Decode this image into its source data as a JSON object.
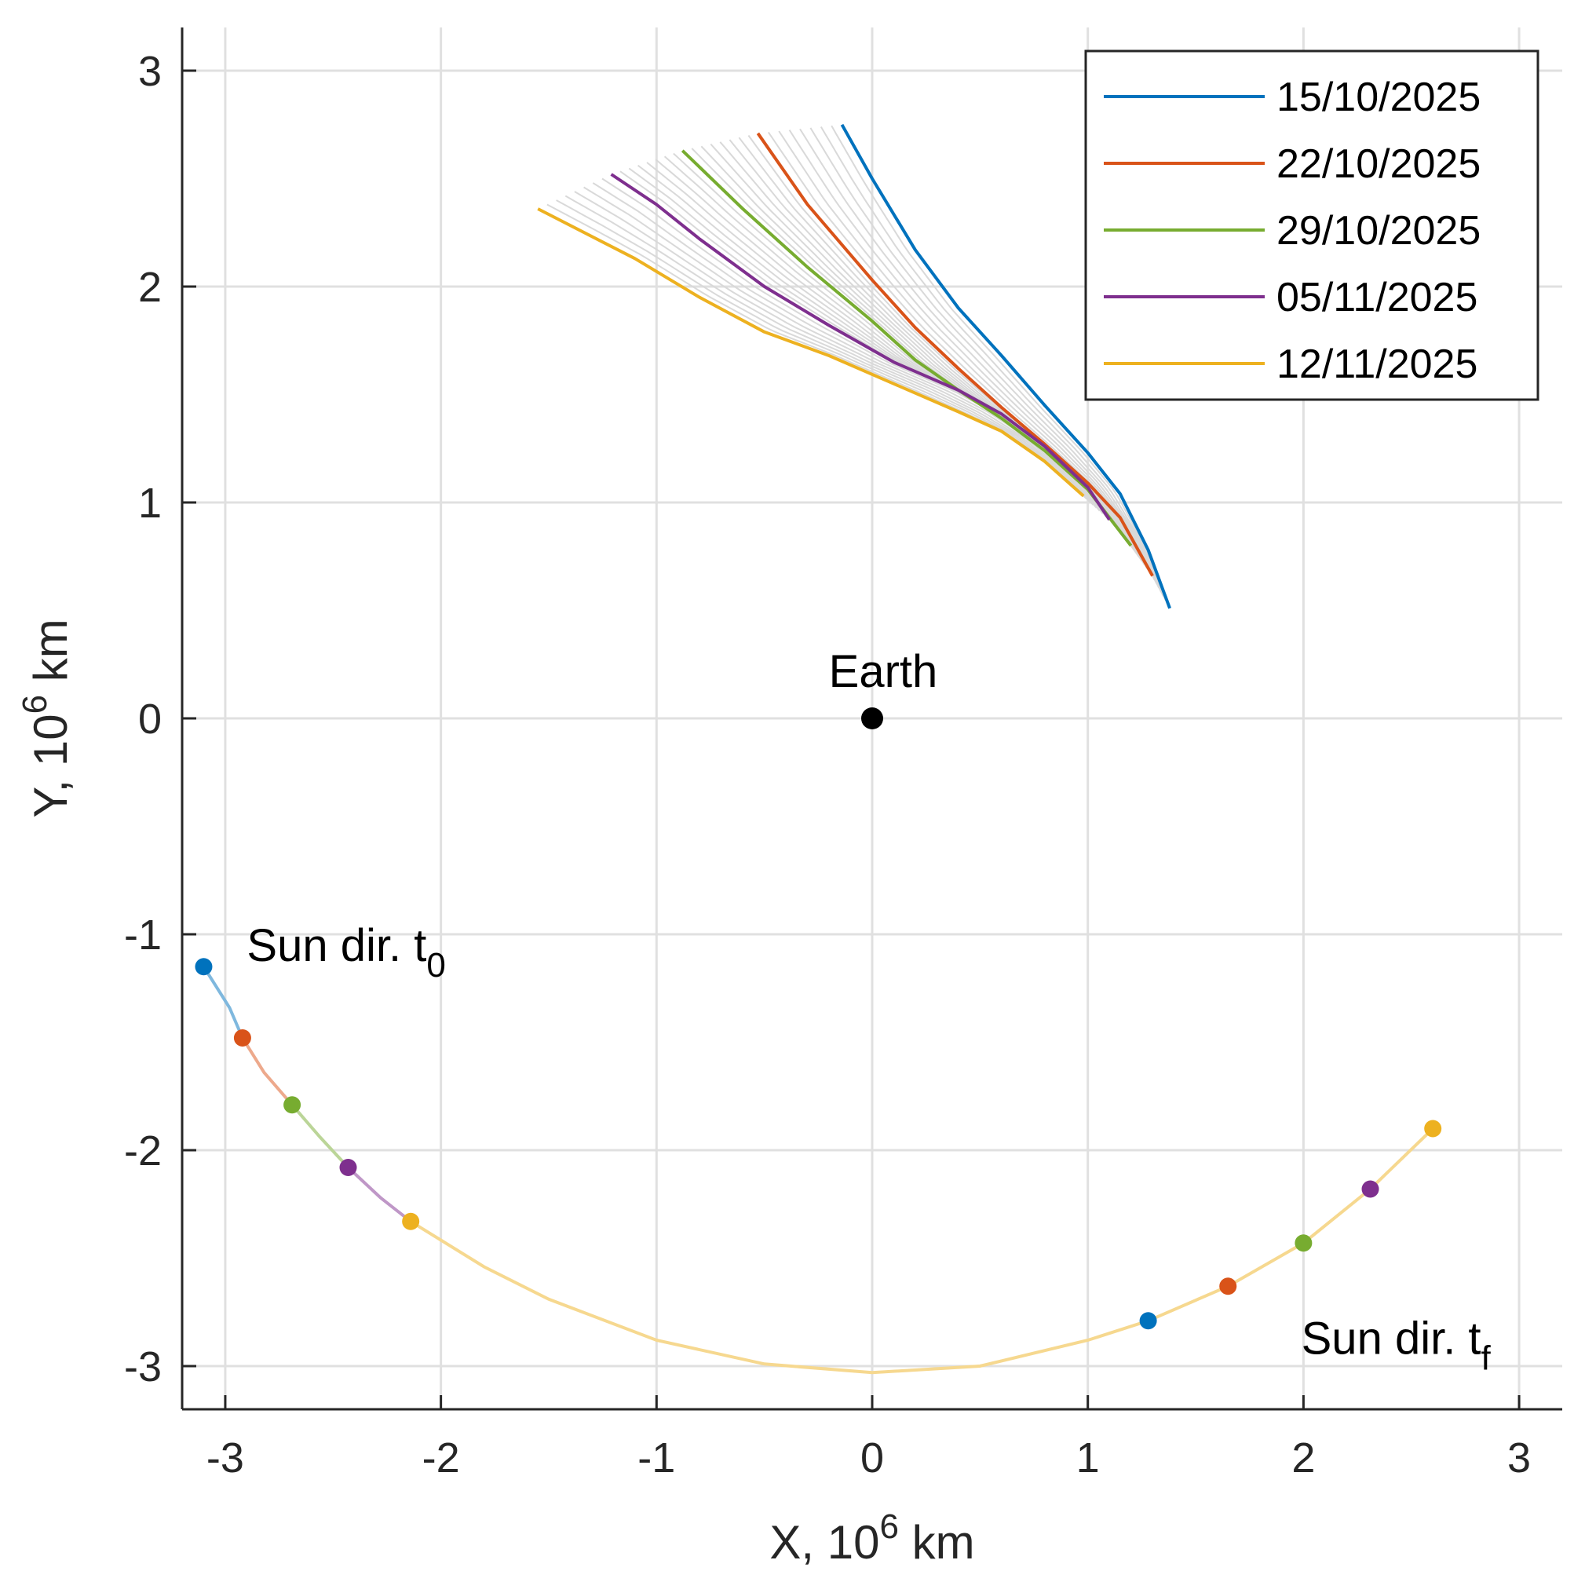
{
  "chart_data": {
    "type": "line",
    "title": "",
    "xlabel": {
      "text": "X, 10",
      "sup": "6",
      "unit": " km"
    },
    "ylabel": {
      "text": "Y, 10",
      "sup": "6",
      "unit": " km"
    },
    "xlim": [
      -3.2,
      3.2
    ],
    "ylim": [
      -3.2,
      3.2
    ],
    "xticks": [
      -3,
      -2,
      -1,
      0,
      1,
      2,
      3
    ],
    "yticks": [
      -3,
      -2,
      -1,
      0,
      1,
      2,
      3
    ],
    "grid": true,
    "legend_position": "top-right",
    "series": [
      {
        "name": "15/10/2025",
        "color": "#0072BD",
        "points": [
          [
            -0.14,
            2.75
          ],
          [
            0.0,
            2.5
          ],
          [
            0.2,
            2.17
          ],
          [
            0.4,
            1.9
          ],
          [
            0.6,
            1.68
          ],
          [
            0.8,
            1.45
          ],
          [
            1.0,
            1.23
          ],
          [
            1.15,
            1.04
          ],
          [
            1.28,
            0.78
          ],
          [
            1.38,
            0.51
          ]
        ]
      },
      {
        "name": "22/10/2025",
        "color": "#D95319",
        "points": [
          [
            -0.53,
            2.71
          ],
          [
            -0.3,
            2.38
          ],
          [
            0.0,
            2.03
          ],
          [
            0.2,
            1.81
          ],
          [
            0.4,
            1.62
          ],
          [
            0.6,
            1.44
          ],
          [
            0.8,
            1.27
          ],
          [
            1.0,
            1.09
          ],
          [
            1.15,
            0.93
          ],
          [
            1.3,
            0.66
          ]
        ]
      },
      {
        "name": "29/10/2025",
        "color": "#77AC30",
        "points": [
          [
            -0.88,
            2.63
          ],
          [
            -0.6,
            2.36
          ],
          [
            -0.3,
            2.09
          ],
          [
            0.0,
            1.84
          ],
          [
            0.2,
            1.66
          ],
          [
            0.4,
            1.52
          ],
          [
            0.6,
            1.39
          ],
          [
            0.8,
            1.24
          ],
          [
            1.0,
            1.06
          ],
          [
            1.2,
            0.8
          ]
        ]
      },
      {
        "name": "05/11/2025",
        "color": "#7E2F8E",
        "points": [
          [
            -1.21,
            2.52
          ],
          [
            -1.0,
            2.38
          ],
          [
            -0.8,
            2.22
          ],
          [
            -0.5,
            2.0
          ],
          [
            -0.2,
            1.82
          ],
          [
            0.1,
            1.65
          ],
          [
            0.4,
            1.52
          ],
          [
            0.6,
            1.41
          ],
          [
            0.8,
            1.26
          ],
          [
            1.0,
            1.07
          ],
          [
            1.1,
            0.92
          ]
        ]
      },
      {
        "name": "12/11/2025",
        "color": "#EDB120",
        "points": [
          [
            -1.55,
            2.36
          ],
          [
            -1.1,
            2.13
          ],
          [
            -0.8,
            1.95
          ],
          [
            -0.5,
            1.79
          ],
          [
            -0.2,
            1.68
          ],
          [
            0.1,
            1.55
          ],
          [
            0.4,
            1.42
          ],
          [
            0.6,
            1.33
          ],
          [
            0.8,
            1.19
          ],
          [
            0.98,
            1.03
          ]
        ]
      }
    ],
    "earth": {
      "label": "Earth",
      "x": 0.0,
      "y": 0.0
    },
    "sun_direction": {
      "label_start": {
        "text": "Sun dir. t",
        "sub": "0",
        "x": -2.9,
        "y": -1.05
      },
      "label_end": {
        "text": "Sun dir. t",
        "sub": "f",
        "x": 1.99,
        "y": -2.87
      },
      "arc_segments": [
        {
          "color": "#7FB8DE",
          "points": [
            [
              -3.1,
              -1.15
            ],
            [
              -2.98,
              -1.34
            ],
            [
              -2.92,
              -1.48
            ]
          ]
        },
        {
          "color": "#EDA98C",
          "points": [
            [
              -2.92,
              -1.48
            ],
            [
              -2.82,
              -1.64
            ],
            [
              -2.69,
              -1.79
            ]
          ]
        },
        {
          "color": "#BBD598",
          "points": [
            [
              -2.69,
              -1.79
            ],
            [
              -2.56,
              -1.94
            ],
            [
              -2.43,
              -2.08
            ]
          ]
        },
        {
          "color": "#BF97C7",
          "points": [
            [
              -2.43,
              -2.08
            ],
            [
              -2.28,
              -2.22
            ],
            [
              -2.14,
              -2.33
            ]
          ]
        },
        {
          "color": "#F6D88F",
          "points": [
            [
              -2.14,
              -2.33
            ],
            [
              -1.8,
              -2.54
            ],
            [
              -1.5,
              -2.69
            ],
            [
              -1.0,
              -2.88
            ],
            [
              -0.5,
              -2.99
            ],
            [
              0.0,
              -3.03
            ],
            [
              0.5,
              -3.0
            ],
            [
              1.0,
              -2.88
            ],
            [
              1.28,
              -2.79
            ],
            [
              1.65,
              -2.63
            ],
            [
              2.0,
              -2.43
            ],
            [
              2.31,
              -2.18
            ],
            [
              2.6,
              -1.9
            ]
          ]
        }
      ],
      "markers": [
        {
          "x": -3.1,
          "y": -1.15,
          "color": "#0072BD"
        },
        {
          "x": -2.92,
          "y": -1.48,
          "color": "#D95319"
        },
        {
          "x": -2.69,
          "y": -1.79,
          "color": "#77AC30"
        },
        {
          "x": -2.43,
          "y": -2.08,
          "color": "#7E2F8E"
        },
        {
          "x": -2.14,
          "y": -2.33,
          "color": "#EDB120"
        },
        {
          "x": 1.28,
          "y": -2.79,
          "color": "#0072BD"
        },
        {
          "x": 1.65,
          "y": -2.63,
          "color": "#D95319"
        },
        {
          "x": 2.0,
          "y": -2.43,
          "color": "#77AC30"
        },
        {
          "x": 2.31,
          "y": -2.18,
          "color": "#7E2F8E"
        },
        {
          "x": 2.6,
          "y": -1.9,
          "color": "#EDB120"
        }
      ]
    },
    "intermediate_trajectory_count": 32,
    "intermediate_color": "#D9D9D9"
  }
}
